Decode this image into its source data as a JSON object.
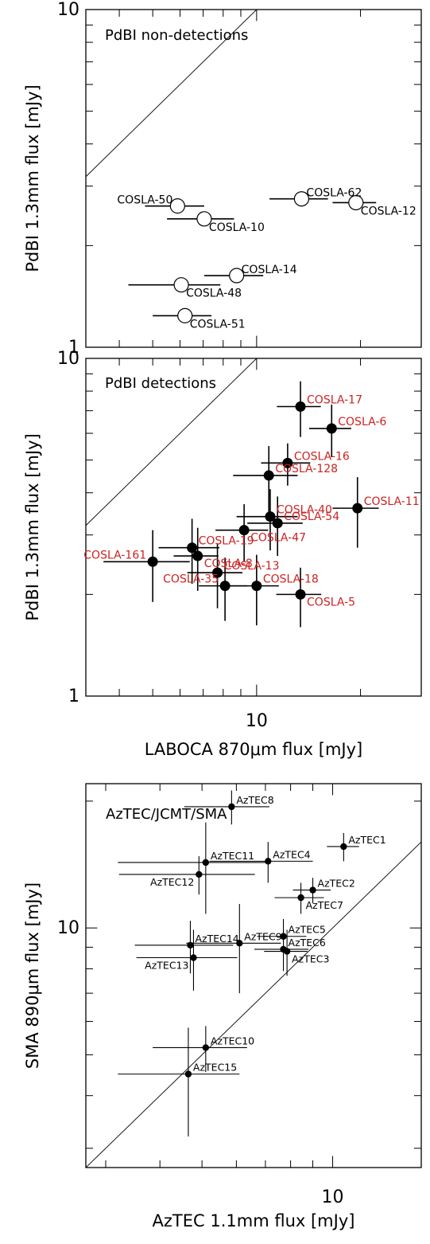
{
  "chart_data": [
    {
      "type": "scatter",
      "title": "PdBI non-detections",
      "xlabel": "",
      "ylabel": "PdBI 1.3mm flux [mJy]",
      "xscale": "log",
      "yscale": "log",
      "xlim": [
        3.2,
        30
      ],
      "ylim": [
        1,
        10
      ],
      "x_tick_labels": [],
      "y_tick_labels": [
        {
          "value": 1,
          "label": "1"
        },
        {
          "value": 10,
          "label": "10"
        }
      ],
      "one_to_one_line": true,
      "marker": "open-circle",
      "label_color": "#000000",
      "points": [
        {
          "label": "COSLA-50",
          "x": 5.9,
          "y": 2.62,
          "xerr": 1.15,
          "yerr": 0
        },
        {
          "label": "COSLA-62",
          "x": 13.5,
          "y": 2.75,
          "xerr": 2.6,
          "yerr": 0
        },
        {
          "label": "COSLA-12",
          "x": 19.4,
          "y": 2.68,
          "xerr": 2.8,
          "yerr": 0
        },
        {
          "label": "COSLA-10",
          "x": 7.05,
          "y": 2.4,
          "xerr": 1.55,
          "yerr": 0
        },
        {
          "label": "COSLA-14",
          "x": 8.75,
          "y": 1.63,
          "xerr": 1.7,
          "yerr": 0
        },
        {
          "label": "COSLA-48",
          "x": 6.05,
          "y": 1.53,
          "xerr": 1.8,
          "yerr": 0
        },
        {
          "label": "COSLA-51",
          "x": 6.2,
          "y": 1.24,
          "xerr": 1.2,
          "yerr": 0
        }
      ]
    },
    {
      "type": "scatter",
      "title": "PdBI detections",
      "xlabel": "LABOCA 870μm flux [mJy]",
      "ylabel": "PdBI 1.3mm flux [mJy]",
      "xscale": "log",
      "yscale": "log",
      "xlim": [
        3.2,
        30
      ],
      "ylim": [
        1,
        10
      ],
      "x_tick_labels": [
        {
          "value": 10,
          "label": "10"
        }
      ],
      "y_tick_labels": [
        {
          "value": 1,
          "label": "1"
        },
        {
          "value": 10,
          "label": "10"
        }
      ],
      "one_to_one_line": true,
      "marker": "filled-circle",
      "label_color": "#cc2222",
      "points": [
        {
          "label": "COSLA-17",
          "x": 13.4,
          "y": 7.2,
          "xerr": 1.95,
          "yerr": 1.35
        },
        {
          "label": "COSLA-6",
          "x": 16.5,
          "y": 6.2,
          "xerr": 2.3,
          "yerr": 1.1
        },
        {
          "label": "COSLA-16",
          "x": 12.3,
          "y": 4.9,
          "xerr": 2.0,
          "yerr": 0.7
        },
        {
          "label": "COSLA-128",
          "x": 10.85,
          "y": 4.5,
          "xerr": 2.3,
          "yerr": 1.0
        },
        {
          "label": "COSLA-11",
          "x": 19.6,
          "y": 3.6,
          "xerr": 3.0,
          "yerr": 0.85
        },
        {
          "label": "COSLA-40",
          "x": 10.95,
          "y": 3.4,
          "xerr": 2.2,
          "yerr": 0.7
        },
        {
          "label": "COSLA-54",
          "x": 11.5,
          "y": 3.25,
          "xerr": 2.1,
          "yerr": 0.65
        },
        {
          "label": "COSLA-47",
          "x": 9.2,
          "y": 3.1,
          "xerr": 1.6,
          "yerr": 0.6
        },
        {
          "label": "COSLA-19",
          "x": 6.5,
          "y": 2.75,
          "xerr": 1.3,
          "yerr": 0.6
        },
        {
          "label": "COSLA-8",
          "x": 6.75,
          "y": 2.6,
          "xerr": 1.0,
          "yerr": 0.55
        },
        {
          "label": "COSLA-161",
          "x": 5.0,
          "y": 2.5,
          "xerr": 1.4,
          "yerr": 0.6
        },
        {
          "label": "COSLA-13",
          "x": 7.7,
          "y": 2.32,
          "xerr": 1.4,
          "yerr": 0.5
        },
        {
          "label": "COSLA-18",
          "x": 10.0,
          "y": 2.12,
          "xerr": 1.6,
          "yerr": 0.5
        },
        {
          "label": "COSLA-35",
          "x": 8.1,
          "y": 2.12,
          "xerr": 1.3,
          "yerr": 0.45
        },
        {
          "label": "COSLA-5",
          "x": 13.4,
          "y": 2.0,
          "xerr": 2.0,
          "yerr": 0.4
        }
      ]
    },
    {
      "type": "scatter",
      "title": "AzTEC/JCMT/SMA",
      "xlabel": "AzTEC 1.1mm flux [mJy]",
      "ylabel": "SMA 890μm flux [mJy]",
      "xscale": "log",
      "yscale": "log",
      "xlim": [
        2.7,
        16
      ],
      "ylim": [
        2.7,
        22
      ],
      "x_tick_labels": [
        {
          "value": 10,
          "label": "10"
        }
      ],
      "y_tick_labels": [
        {
          "value": 10,
          "label": "10"
        }
      ],
      "one_to_one_line": true,
      "marker": "small-filled-circle",
      "label_color": "#000000",
      "points": [
        {
          "label": "AzTEC8",
          "x": 5.85,
          "y": 19.4,
          "xerr": 1.3,
          "yerr": 1.8
        },
        {
          "label": "AzTEC1",
          "x": 10.6,
          "y": 15.6,
          "xerr": 0.9,
          "yerr": 1.2
        },
        {
          "label": "AzTEC11",
          "x": 5.1,
          "y": 14.3,
          "xerr": 1.9,
          "yerr": 3.5
        },
        {
          "label": "AzTEC4",
          "x": 7.1,
          "y": 14.4,
          "xerr": 1.9,
          "yerr": 1.6
        },
        {
          "label": "AzTEC12",
          "x": 4.92,
          "y": 13.4,
          "xerr": 1.7,
          "yerr": 1.4
        },
        {
          "label": "AzTEC2",
          "x": 9.0,
          "y": 12.3,
          "xerr": 0.9,
          "yerr": 0.85
        },
        {
          "label": "AzTEC7",
          "x": 8.45,
          "y": 11.8,
          "xerr": 1.1,
          "yerr": 1.0
        },
        {
          "label": "AzTEC5",
          "x": 7.7,
          "y": 9.55,
          "xerr": 1.0,
          "yerr": 0.95
        },
        {
          "label": "AzTEC9",
          "x": 6.1,
          "y": 9.2,
          "xerr": 1.5,
          "yerr": 2.2
        },
        {
          "label": "AzTEC14",
          "x": 4.7,
          "y": 9.1,
          "xerr": 1.2,
          "yerr": 1.3
        },
        {
          "label": "AzTEC6",
          "x": 7.7,
          "y": 8.9,
          "xerr": 1.1,
          "yerr": 1.0
        },
        {
          "label": "AzTEC3",
          "x": 7.85,
          "y": 8.8,
          "xerr": 0.9,
          "yerr": 1.1
        },
        {
          "label": "AzTEC13",
          "x": 4.78,
          "y": 8.5,
          "xerr": 1.25,
          "yerr": 1.4
        },
        {
          "label": "AzTEC10",
          "x": 5.1,
          "y": 5.2,
          "xerr": 1.25,
          "yerr": 0.65
        },
        {
          "label": "AzTEC15",
          "x": 4.65,
          "y": 4.5,
          "xerr": 1.45,
          "yerr": 1.3
        }
      ]
    }
  ]
}
